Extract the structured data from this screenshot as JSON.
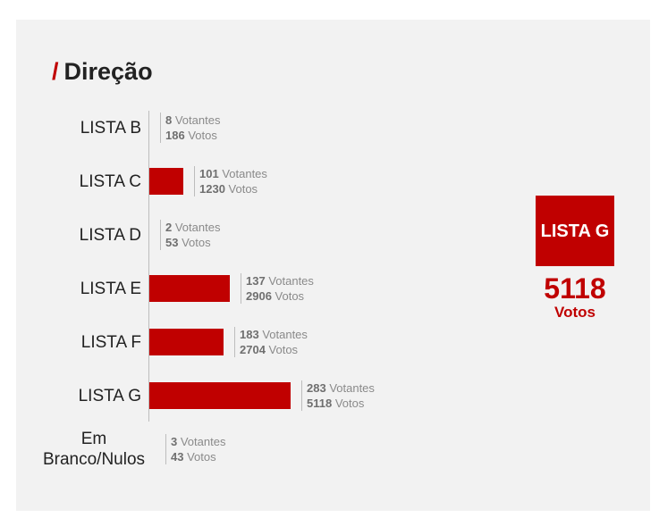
{
  "title": "Direção",
  "title_mark": "/",
  "colors": {
    "bar": "#c00000",
    "panel": "#f2f2f2",
    "accent": "#c00000"
  },
  "labels": {
    "voters_unit": "Votantes",
    "votes_unit": "Votos"
  },
  "chart_data": {
    "type": "bar",
    "orientation": "horizontal",
    "title": "Direção",
    "categories": [
      "LISTA B",
      "LISTA C",
      "LISTA D",
      "LISTA E",
      "LISTA F",
      "LISTA G",
      "Em Branco/Nulos"
    ],
    "series": [
      {
        "name": "Votantes",
        "values": [
          8,
          101,
          2,
          137,
          183,
          283,
          3
        ]
      },
      {
        "name": "Votos",
        "values": [
          186,
          1230,
          53,
          2906,
          2704,
          5118,
          43
        ]
      }
    ],
    "bars_visible": [
      false,
      true,
      false,
      true,
      true,
      true,
      false
    ],
    "legend": "none",
    "grid": false
  },
  "winner": {
    "name": "LISTA G",
    "votes": "5118",
    "unit": "Votos"
  }
}
